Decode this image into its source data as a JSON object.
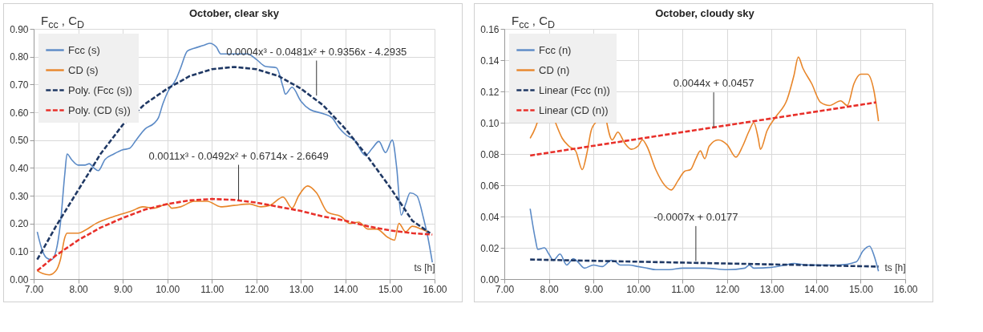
{
  "chart_data": [
    {
      "type": "line",
      "title": "October, clear sky",
      "xlabel": "ts [h]",
      "ylabel": "F$_{cc}$ , C$_{D}$",
      "xlim": [
        7,
        16
      ],
      "xticks": [
        {
          "value": 7,
          "label": "7.00"
        },
        {
          "value": 8,
          "label": "8.00"
        },
        {
          "value": 9,
          "label": "9.00"
        },
        {
          "value": 10,
          "label": "10.00"
        },
        {
          "value": 11,
          "label": "11.00"
        },
        {
          "value": 12,
          "label": "12.00"
        },
        {
          "value": 13,
          "label": "13.00"
        },
        {
          "value": 14,
          "label": "14.00"
        },
        {
          "value": 15,
          "label": "15.00"
        },
        {
          "value": 16,
          "label": "16.00"
        }
      ],
      "ylim": [
        0,
        0.9
      ],
      "yticks": [
        {
          "value": 0,
          "label": "0.00"
        },
        {
          "value": 0.1,
          "label": "0.10"
        },
        {
          "value": 0.2,
          "label": "0.20"
        },
        {
          "value": 0.3,
          "label": "0.30"
        },
        {
          "value": 0.4,
          "label": "0.40"
        },
        {
          "value": 0.5,
          "label": "0.50"
        },
        {
          "value": 0.6,
          "label": "0.60"
        },
        {
          "value": 0.7,
          "label": "0.70"
        },
        {
          "value": 0.8,
          "label": "0.80"
        },
        {
          "value": 0.9,
          "label": "0.90"
        }
      ],
      "grid": true,
      "legend": "top left",
      "marker": "none",
      "series": [
        {
          "name": "Fcc (s)",
          "color": "#5b8ac6",
          "line_style": "solid",
          "x": [
            7.08,
            7.2,
            7.3,
            7.4,
            7.5,
            7.6,
            7.7,
            7.75,
            7.85,
            8.0,
            8.15,
            8.25,
            8.35,
            8.45,
            8.6,
            8.8,
            9.0,
            9.15,
            9.3,
            9.5,
            9.7,
            9.8,
            9.9,
            10.0,
            10.2,
            10.3,
            10.45,
            10.6,
            10.8,
            10.95,
            11.1,
            11.2,
            11.3,
            11.5,
            11.8,
            12.0,
            12.2,
            12.45,
            12.6,
            12.65,
            12.8,
            13.0,
            13.2,
            13.5,
            13.7,
            13.85,
            14.0,
            14.2,
            14.45,
            14.6,
            14.75,
            14.9,
            15.05,
            15.15,
            15.25,
            15.35,
            15.45,
            15.6,
            15.75,
            15.85,
            15.95
          ],
          "values": [
            0.17,
            0.1,
            0.075,
            0.07,
            0.1,
            0.2,
            0.38,
            0.45,
            0.43,
            0.41,
            0.41,
            0.415,
            0.4,
            0.39,
            0.43,
            0.45,
            0.465,
            0.47,
            0.5,
            0.54,
            0.56,
            0.58,
            0.63,
            0.67,
            0.72,
            0.76,
            0.82,
            0.83,
            0.84,
            0.848,
            0.835,
            0.81,
            0.81,
            0.81,
            0.81,
            0.79,
            0.765,
            0.76,
            0.69,
            0.665,
            0.69,
            0.64,
            0.61,
            0.595,
            0.58,
            0.545,
            0.52,
            0.5,
            0.445,
            0.47,
            0.495,
            0.455,
            0.5,
            0.4,
            0.23,
            0.27,
            0.31,
            0.3,
            0.22,
            0.15,
            0.06
          ]
        },
        {
          "name": "CD (s)",
          "color": "#e8862a",
          "line_style": "solid",
          "x": [
            7.08,
            7.2,
            7.35,
            7.5,
            7.6,
            7.7,
            7.75,
            8.0,
            8.15,
            8.4,
            8.8,
            9.2,
            9.45,
            9.7,
            10.0,
            10.1,
            10.3,
            10.6,
            10.9,
            11.2,
            11.5,
            11.85,
            12.1,
            12.3,
            12.6,
            12.8,
            12.95,
            13.15,
            13.35,
            13.6,
            13.9,
            14.1,
            14.3,
            14.5,
            14.7,
            14.95,
            15.1,
            15.2,
            15.35,
            15.5,
            15.7,
            15.85
          ],
          "values": [
            0.03,
            0.02,
            0.015,
            0.03,
            0.07,
            0.15,
            0.165,
            0.165,
            0.175,
            0.2,
            0.225,
            0.245,
            0.26,
            0.255,
            0.27,
            0.255,
            0.26,
            0.28,
            0.28,
            0.26,
            0.265,
            0.27,
            0.26,
            0.265,
            0.295,
            0.255,
            0.3,
            0.335,
            0.31,
            0.24,
            0.225,
            0.2,
            0.205,
            0.18,
            0.18,
            0.15,
            0.14,
            0.2,
            0.17,
            0.19,
            0.18,
            0.17
          ]
        },
        {
          "name": "Poly. (Fcc (s))",
          "type": "line",
          "color": "#1f3864",
          "line_style": "dashed",
          "x": [
            7.08,
            7.5,
            8,
            8.5,
            9,
            9.5,
            10,
            10.5,
            11,
            11.5,
            12,
            12.5,
            13,
            13.5,
            14,
            14.5,
            15,
            15.5,
            15.9
          ],
          "values": [
            0.07,
            0.19,
            0.32,
            0.45,
            0.555,
            0.63,
            0.685,
            0.73,
            0.755,
            0.763,
            0.755,
            0.73,
            0.685,
            0.625,
            0.54,
            0.44,
            0.33,
            0.21,
            0.165
          ]
        },
        {
          "name": "Poly. (CD (s))",
          "type": "line",
          "color": "#e8302a",
          "line_style": "dashed",
          "x": [
            7.08,
            7.5,
            8,
            8.5,
            9,
            9.5,
            10,
            10.5,
            11,
            11.5,
            12,
            12.5,
            13,
            13.5,
            14,
            14.5,
            15,
            15.5,
            15.95
          ],
          "values": [
            0.03,
            0.085,
            0.14,
            0.185,
            0.22,
            0.25,
            0.27,
            0.283,
            0.288,
            0.285,
            0.275,
            0.26,
            0.245,
            0.225,
            0.21,
            0.19,
            0.175,
            0.165,
            0.16
          ]
        }
      ],
      "annotations": [
        {
          "text": "0.0004x³ - 0.0481x² + 0.9356x - 4.2935",
          "x": 13.35,
          "y": 0.66
        },
        {
          "text": "0.0011x³ - 0.0492x² + 0.6714x - 2.6649",
          "x": 11.6,
          "y": 0.285
        }
      ]
    },
    {
      "type": "line",
      "title": "October, cloudy sky",
      "xlabel": "ts [h]",
      "ylabel": "F$_{cc}$ , C$_{D}$",
      "xlim": [
        7,
        16
      ],
      "xticks": [
        {
          "value": 7,
          "label": "7.00"
        },
        {
          "value": 8,
          "label": "8.00"
        },
        {
          "value": 9,
          "label": "9.00"
        },
        {
          "value": 10,
          "label": "10.00"
        },
        {
          "value": 11,
          "label": "11.00"
        },
        {
          "value": 12,
          "label": "12.00"
        },
        {
          "value": 13,
          "label": "13.00"
        },
        {
          "value": 14,
          "label": "14.00"
        },
        {
          "value": 15,
          "label": "15.00"
        },
        {
          "value": 16,
          "label": "16.00"
        }
      ],
      "ylim": [
        0,
        0.16
      ],
      "yticks": [
        {
          "value": 0,
          "label": "0.00"
        },
        {
          "value": 0.02,
          "label": "0.02"
        },
        {
          "value": 0.04,
          "label": "0.04"
        },
        {
          "value": 0.06,
          "label": "0.06"
        },
        {
          "value": 0.08,
          "label": "0.08"
        },
        {
          "value": 0.1,
          "label": "0.10"
        },
        {
          "value": 0.12,
          "label": "0.12"
        },
        {
          "value": 0.14,
          "label": "0.14"
        },
        {
          "value": 0.16,
          "label": "0.16"
        }
      ],
      "grid": true,
      "legend": "top left",
      "marker": "none",
      "series": [
        {
          "name": "Fcc (n)",
          "color": "#5b8ac6",
          "line_style": "solid",
          "x": [
            7.58,
            7.7,
            7.75,
            7.9,
            8.0,
            8.1,
            8.25,
            8.4,
            8.55,
            8.65,
            8.8,
            9.0,
            9.2,
            9.4,
            9.5,
            9.6,
            9.8,
            10.0,
            10.2,
            10.4,
            10.7,
            11.0,
            11.3,
            11.5,
            12.0,
            12.4,
            12.5,
            12.6,
            13.0,
            13.3,
            13.5,
            13.8,
            14.5,
            14.9,
            15.05,
            15.2,
            15.3,
            15.4
          ],
          "values": [
            0.045,
            0.025,
            0.019,
            0.02,
            0.016,
            0.012,
            0.016,
            0.009,
            0.013,
            0.011,
            0.007,
            0.009,
            0.008,
            0.012,
            0.011,
            0.009,
            0.009,
            0.008,
            0.007,
            0.006,
            0.006,
            0.007,
            0.007,
            0.007,
            0.006,
            0.007,
            0.009,
            0.007,
            0.0075,
            0.009,
            0.01,
            0.009,
            0.009,
            0.011,
            0.018,
            0.021,
            0.015,
            0.005
          ]
        },
        {
          "name": "CD (n)",
          "color": "#e8862a",
          "line_style": "solid",
          "x": [
            7.58,
            7.7,
            7.75,
            7.8,
            8.1,
            8.15,
            8.3,
            8.45,
            8.6,
            8.75,
            8.85,
            8.95,
            9.05,
            9.1,
            9.25,
            9.3,
            9.42,
            9.55,
            9.7,
            9.85,
            10.0,
            10.1,
            10.2,
            10.4,
            10.6,
            10.75,
            10.9,
            11.05,
            11.18,
            11.3,
            11.4,
            11.5,
            11.6,
            11.8,
            12.0,
            12.2,
            12.35,
            12.5,
            12.6,
            12.7,
            12.75,
            12.9,
            13.1,
            13.35,
            13.5,
            13.6,
            13.7,
            13.9,
            14.1,
            14.3,
            14.55,
            14.7,
            14.85,
            15.0,
            15.15,
            15.3,
            15.4
          ],
          "values": [
            0.09,
            0.097,
            0.101,
            null,
            null,
            0.1,
            0.09,
            0.085,
            0.082,
            0.07,
            0.08,
            0.095,
            0.1,
            null,
            null,
            0.1,
            0.089,
            0.094,
            0.087,
            0.083,
            0.085,
            0.089,
            0.085,
            0.07,
            0.06,
            0.057,
            0.063,
            0.069,
            0.07,
            0.077,
            0.082,
            0.077,
            0.085,
            0.089,
            0.086,
            0.078,
            0.085,
            0.095,
            0.1,
            0.09,
            0.083,
            0.095,
            0.104,
            0.115,
            0.13,
            0.142,
            0.135,
            0.125,
            0.113,
            0.111,
            0.114,
            0.111,
            0.125,
            0.131,
            0.131,
            0.12,
            0.101
          ]
        },
        {
          "name": "Linear (Fcc (n))",
          "type": "line",
          "color": "#1f3864",
          "line_style": "dashed",
          "x": [
            7.58,
            15.4
          ],
          "values": [
            0.0125,
            0.008
          ]
        },
        {
          "name": "Linear (CD (n))",
          "type": "line",
          "color": "#e8302a",
          "line_style": "dashed",
          "x": [
            7.58,
            15.35
          ],
          "values": [
            0.079,
            0.113
          ]
        }
      ],
      "annotations": [
        {
          "text": "0.0044x + 0.0457",
          "x": 11.7,
          "y": 0.097
        },
        {
          "text": "-0.0007x + 0.0177",
          "x": 11.3,
          "y": 0.0115
        }
      ]
    }
  ]
}
